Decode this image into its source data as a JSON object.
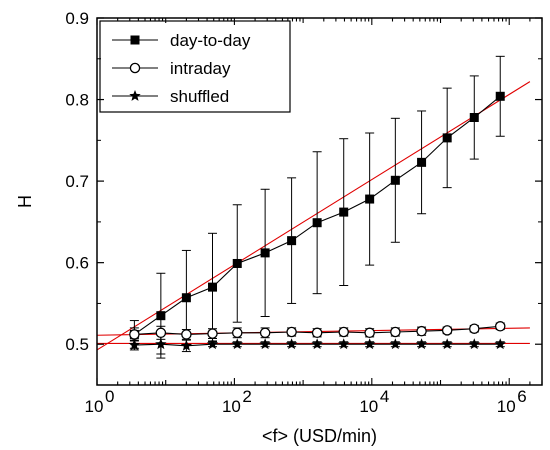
{
  "chart_data": {
    "type": "line",
    "xlabel": "<f> (USD/min)",
    "ylabel": "H",
    "x_scale": "log",
    "xlim": [
      1,
      3000000
    ],
    "ylim": [
      0.45,
      0.9
    ],
    "x_ticks": [
      1,
      100,
      10000,
      1000000
    ],
    "x_tick_labels": [
      {
        "base": "10",
        "exp": "0"
      },
      {
        "base": "10",
        "exp": "2"
      },
      {
        "base": "10",
        "exp": "4"
      },
      {
        "base": "10",
        "exp": "6"
      }
    ],
    "y_ticks": [
      0.5,
      0.6,
      0.7,
      0.8,
      0.9
    ],
    "y_tick_labels": [
      "0.5",
      "0.6",
      "0.7",
      "0.8",
      "0.9"
    ],
    "grid": false,
    "legend_position": "top-left",
    "x": [
      3.5,
      8.5,
      20,
      48,
      110,
      280,
      680,
      1600,
      3900,
      9300,
      22000,
      53000,
      125000,
      310000,
      740000
    ],
    "series": [
      {
        "name": "day-to-day",
        "marker": "filled-square",
        "y": [
          0.512,
          0.535,
          0.557,
          0.57,
          0.599,
          0.612,
          0.627,
          0.649,
          0.662,
          0.678,
          0.701,
          0.723,
          0.753,
          0.778,
          0.804
        ],
        "err": [
          0.017,
          0.052,
          0.058,
          0.066,
          0.072,
          0.078,
          0.077,
          0.087,
          0.09,
          0.081,
          0.076,
          0.063,
          0.061,
          0.051,
          0.049
        ],
        "fit": {
          "x": [
            1,
            2000000
          ],
          "y": [
            0.493,
            0.822
          ]
        }
      },
      {
        "name": "intraday",
        "marker": "open-circle",
        "y": [
          0.512,
          0.514,
          0.512,
          0.513,
          0.514,
          0.514,
          0.515,
          0.514,
          0.515,
          0.514,
          0.515,
          0.516,
          0.517,
          0.519,
          0.522
        ],
        "err": [
          0.008,
          0.008,
          0.006,
          0.006,
          0.006,
          0.006,
          0.005,
          0.005,
          0.005,
          0.005,
          0.005,
          0.005,
          0.004,
          0.004,
          0.004
        ],
        "fit": {
          "x": [
            1,
            2000000
          ],
          "y": [
            0.511,
            0.52
          ]
        }
      },
      {
        "name": "shuffled",
        "marker": "star",
        "y": [
          0.499,
          0.5,
          0.498,
          0.5,
          0.5,
          0.5,
          0.5,
          0.5,
          0.5,
          0.5,
          0.5,
          0.5,
          0.5,
          0.5,
          0.5
        ],
        "err": [
          0.006,
          0.012,
          0.007,
          0.003,
          0.003,
          0.003,
          0.003,
          0.003,
          0.003,
          0.003,
          0.003,
          0.003,
          0.003,
          0.003,
          0.003
        ],
        "fit": {
          "x": [
            1,
            2000000
          ],
          "y": [
            0.501,
            0.501
          ]
        }
      }
    ],
    "colors": {
      "data": "#000000",
      "fit": "#e00000"
    }
  }
}
